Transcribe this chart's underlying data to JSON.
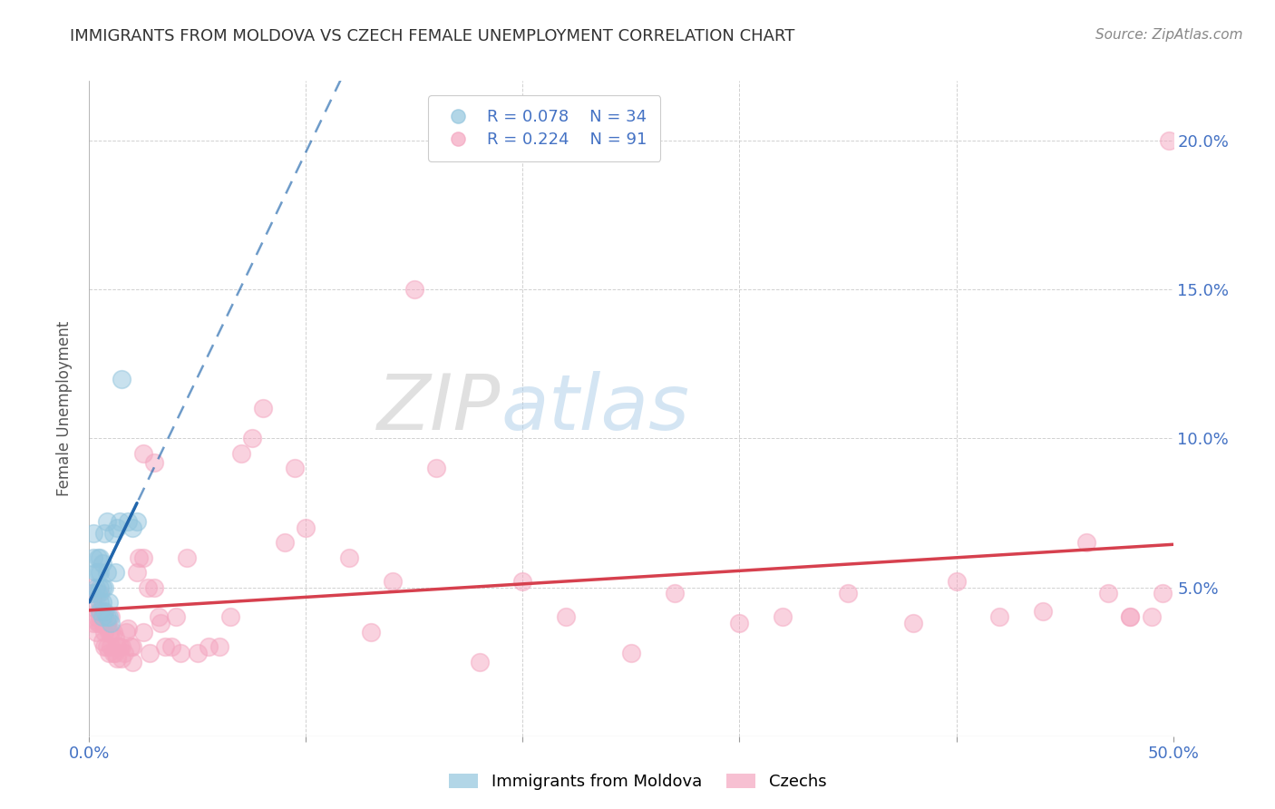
{
  "title": "IMMIGRANTS FROM MOLDOVA VS CZECH FEMALE UNEMPLOYMENT CORRELATION CHART",
  "source": "Source: ZipAtlas.com",
  "xlabel_blue": "Immigrants from Moldova",
  "xlabel_pink": "Czechs",
  "ylabel": "Female Unemployment",
  "xlim": [
    0,
    0.5
  ],
  "ylim": [
    0,
    0.22
  ],
  "x_ticks": [
    0.0,
    0.1,
    0.2,
    0.3,
    0.4,
    0.5
  ],
  "x_tick_labels": [
    "0.0%",
    "",
    "",
    "",
    "",
    "50.0%"
  ],
  "y_ticks": [
    0.0,
    0.05,
    0.1,
    0.15,
    0.2
  ],
  "y_tick_labels_right": [
    "",
    "5.0%",
    "10.0%",
    "15.0%",
    "20.0%"
  ],
  "legend_R_blue": "R = 0.078",
  "legend_N_blue": "N = 34",
  "legend_R_pink": "R = 0.224",
  "legend_N_pink": "N = 91",
  "blue_color": "#92c5de",
  "pink_color": "#f4a6c0",
  "blue_line_color": "#2166ac",
  "pink_line_color": "#d6404e",
  "tick_color": "#4472c4",
  "blue_scatter_x": [
    0.001,
    0.002,
    0.002,
    0.003,
    0.003,
    0.004,
    0.004,
    0.004,
    0.005,
    0.005,
    0.005,
    0.005,
    0.005,
    0.006,
    0.006,
    0.006,
    0.006,
    0.007,
    0.007,
    0.007,
    0.008,
    0.008,
    0.008,
    0.009,
    0.009,
    0.01,
    0.011,
    0.012,
    0.013,
    0.014,
    0.015,
    0.018,
    0.02,
    0.022
  ],
  "blue_scatter_y": [
    0.048,
    0.06,
    0.068,
    0.05,
    0.055,
    0.048,
    0.055,
    0.06,
    0.042,
    0.045,
    0.05,
    0.055,
    0.06,
    0.04,
    0.045,
    0.05,
    0.058,
    0.042,
    0.05,
    0.068,
    0.04,
    0.055,
    0.072,
    0.04,
    0.045,
    0.038,
    0.068,
    0.055,
    0.07,
    0.072,
    0.12,
    0.072,
    0.07,
    0.072
  ],
  "pink_scatter_x": [
    0.001,
    0.001,
    0.002,
    0.002,
    0.003,
    0.003,
    0.003,
    0.004,
    0.004,
    0.005,
    0.005,
    0.005,
    0.005,
    0.006,
    0.006,
    0.006,
    0.007,
    0.007,
    0.007,
    0.008,
    0.008,
    0.009,
    0.009,
    0.01,
    0.01,
    0.01,
    0.011,
    0.011,
    0.012,
    0.012,
    0.013,
    0.013,
    0.014,
    0.015,
    0.015,
    0.016,
    0.017,
    0.018,
    0.019,
    0.02,
    0.02,
    0.022,
    0.023,
    0.025,
    0.027,
    0.028,
    0.03,
    0.032,
    0.033,
    0.035,
    0.038,
    0.04,
    0.042,
    0.045,
    0.05,
    0.055,
    0.06,
    0.065,
    0.07,
    0.075,
    0.08,
    0.09,
    0.095,
    0.1,
    0.12,
    0.13,
    0.14,
    0.15,
    0.16,
    0.18,
    0.2,
    0.22,
    0.25,
    0.27,
    0.3,
    0.32,
    0.35,
    0.38,
    0.4,
    0.42,
    0.44,
    0.46,
    0.47,
    0.48,
    0.49,
    0.495,
    0.498,
    0.03,
    0.025,
    0.025,
    0.48
  ],
  "pink_scatter_y": [
    0.045,
    0.05,
    0.038,
    0.048,
    0.035,
    0.04,
    0.048,
    0.038,
    0.042,
    0.038,
    0.04,
    0.042,
    0.048,
    0.032,
    0.038,
    0.042,
    0.03,
    0.035,
    0.04,
    0.03,
    0.038,
    0.028,
    0.035,
    0.03,
    0.035,
    0.04,
    0.028,
    0.035,
    0.028,
    0.033,
    0.026,
    0.03,
    0.03,
    0.026,
    0.03,
    0.028,
    0.035,
    0.036,
    0.03,
    0.025,
    0.03,
    0.055,
    0.06,
    0.035,
    0.05,
    0.028,
    0.05,
    0.04,
    0.038,
    0.03,
    0.03,
    0.04,
    0.028,
    0.06,
    0.028,
    0.03,
    0.03,
    0.04,
    0.095,
    0.1,
    0.11,
    0.065,
    0.09,
    0.07,
    0.06,
    0.035,
    0.052,
    0.15,
    0.09,
    0.025,
    0.052,
    0.04,
    0.028,
    0.048,
    0.038,
    0.04,
    0.048,
    0.038,
    0.052,
    0.04,
    0.042,
    0.065,
    0.048,
    0.04,
    0.04,
    0.048,
    0.2,
    0.092,
    0.095,
    0.06,
    0.04
  ]
}
